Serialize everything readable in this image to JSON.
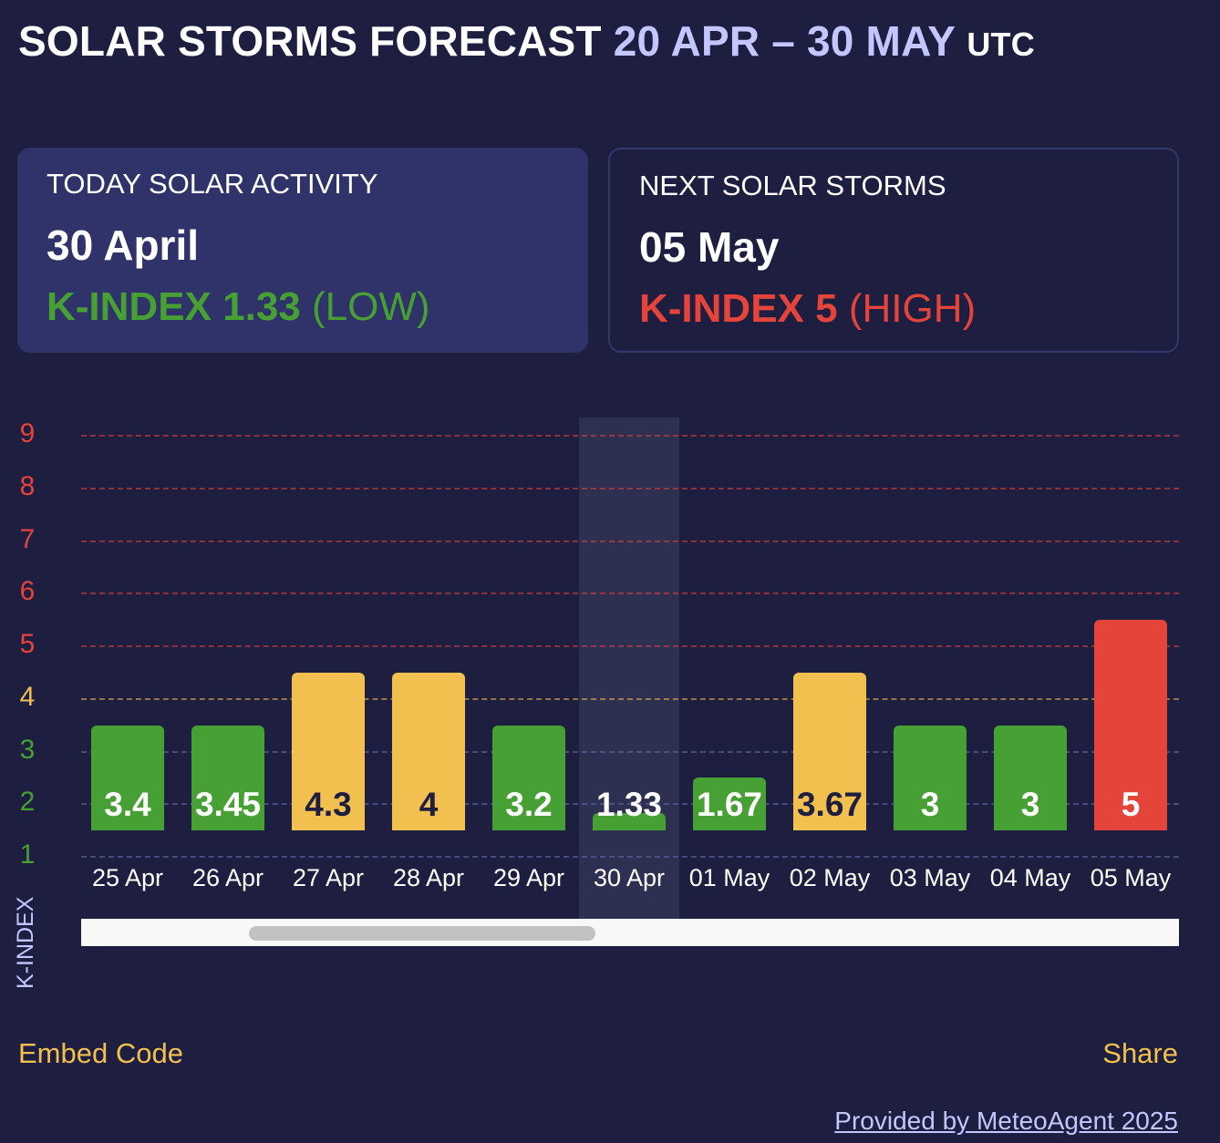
{
  "header": {
    "title": "SOLAR STORMS FORECAST",
    "range": "20 APR – 30 MAY",
    "tz": "UTC"
  },
  "today": {
    "label": "TODAY SOLAR ACTIVITY",
    "date": "30 April",
    "k_prefix": "K-INDEX 1.33",
    "level": "(LOW)",
    "color": "#46a033"
  },
  "next": {
    "label": "NEXT SOLAR STORMS",
    "date": "05 May",
    "k_prefix": "K-INDEX 5",
    "level": "(HIGH)",
    "color": "#e5443a"
  },
  "chart_data": {
    "type": "bar",
    "ylabel": "K-INDEX",
    "ylim": [
      1,
      9
    ],
    "yticks": [
      "1",
      "2",
      "3",
      "4",
      "5",
      "6",
      "7",
      "8",
      "9"
    ],
    "ytick_colors": [
      "#46a033",
      "#46a033",
      "#46a033",
      "#f2c04e",
      "#e5443a",
      "#e5443a",
      "#e5443a",
      "#e5443a",
      "#e5443a"
    ],
    "categories": [
      "25 Apr",
      "26 Apr",
      "27 Apr",
      "28 Apr",
      "29 Apr",
      "30 Apr",
      "01 May",
      "02 May",
      "03 May",
      "04 May",
      "05 May"
    ],
    "values": [
      "3.4",
      "3.45",
      "4.3",
      "4",
      "3.2",
      "1.33",
      "1.67",
      "3.67",
      "3",
      "3",
      "5"
    ],
    "bar_levels": [
      3.5,
      3.5,
      4.5,
      4.5,
      3.5,
      1.83,
      2.5,
      4.5,
      3.5,
      3.5,
      5.5
    ],
    "bar_colors": [
      "#46a033",
      "#46a033",
      "#f2c04e",
      "#f2c04e",
      "#46a033",
      "#46a033",
      "#46a033",
      "#f2c04e",
      "#46a033",
      "#46a033",
      "#e5443a"
    ],
    "highlighted": "30 Apr"
  },
  "footer": {
    "embed": "Embed Code",
    "share": "Share",
    "credit": "Provided by MeteoAgent 2025"
  }
}
